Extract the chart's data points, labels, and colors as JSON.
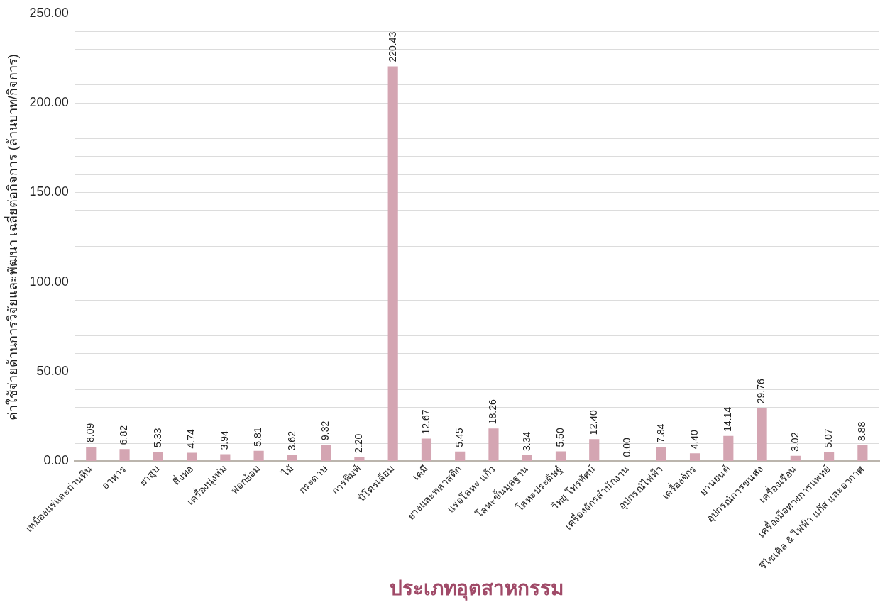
{
  "chart_data": {
    "type": "bar",
    "xlabel": "ประเภทอุตสาหกรรม",
    "ylabel": "ค่าใช้จ่ายด้านการวิจัยและพัฒนา เฉลี่ยต่อกิจการ (ล้านบาท/กิจการ)",
    "categories": [
      "เหมืองแร่และถ่านหิน",
      "อาหาร",
      "ยาสูบ",
      "สิ่งทอ",
      "เครื่องนุ่งห่ม",
      "ฟอกย้อม",
      "ไม้",
      "กระดาษ",
      "การพิมพ์",
      "ปิโตรเลียม",
      "เคมี",
      "ยางและพลาสติก",
      "แร่อโลหะ แก้ว",
      "โลหะขั้นมูลฐาน",
      "โลหะประดิษฐ์",
      "วิทยุ โทรทัศน์",
      "เครื่องจักรสำนักงาน",
      "อุปกรณ์ไฟฟ้า",
      "เครื่องจักร",
      "ยานยนต์",
      "อุปกรณ์การขนส่ง",
      "เครื่องเรือน",
      "เครื่องมือทางการแพทย์",
      "รีไซเคิล & ไฟฟ้า แก๊ส และอากาศ"
    ],
    "values": [
      8.09,
      6.82,
      5.33,
      4.74,
      3.94,
      5.81,
      3.62,
      9.32,
      2.2,
      220.43,
      12.67,
      5.45,
      18.26,
      3.34,
      5.5,
      12.4,
      0.0,
      7.84,
      4.4,
      14.14,
      29.76,
      3.02,
      5.07,
      8.88
    ],
    "value_labels": [
      "8.09",
      "6.82",
      "5.33",
      "4.74",
      "3.94",
      "5.81",
      "3.62",
      "9.32",
      "2.20",
      "220.43",
      "12.67",
      "5.45",
      "18.26",
      "3.34",
      "5.50",
      "12.40",
      "0.00",
      "7.84",
      "4.40",
      "14.14",
      "29.76",
      "3.02",
      "5.07",
      "8.88"
    ],
    "color": "#d4a5b2",
    "ylim": [
      0,
      250
    ],
    "yticks": [
      {
        "value": 0,
        "label": "0.00"
      },
      {
        "value": 10,
        "label": null
      },
      {
        "value": 20,
        "label": null
      },
      {
        "value": 30,
        "label": null
      },
      {
        "value": 40,
        "label": null
      },
      {
        "value": 50,
        "label": "50.00"
      },
      {
        "value": 60,
        "label": null
      },
      {
        "value": 70,
        "label": null
      },
      {
        "value": 80,
        "label": null
      },
      {
        "value": 90,
        "label": null
      },
      {
        "value": 100,
        "label": "100.00"
      },
      {
        "value": 110,
        "label": null
      },
      {
        "value": 120,
        "label": null
      },
      {
        "value": 130,
        "label": null
      },
      {
        "value": 140,
        "label": null
      },
      {
        "value": 150,
        "label": "150.00"
      },
      {
        "value": 160,
        "label": null
      },
      {
        "value": 170,
        "label": null
      },
      {
        "value": 180,
        "label": null
      },
      {
        "value": 190,
        "label": null
      },
      {
        "value": 200,
        "label": "200.00"
      },
      {
        "value": 210,
        "label": null
      },
      {
        "value": 220,
        "label": null
      },
      {
        "value": 230,
        "label": null
      },
      {
        "value": 240,
        "label": null
      },
      {
        "value": 250,
        "label": "250.00"
      }
    ],
    "grid": "y",
    "legend": false
  }
}
